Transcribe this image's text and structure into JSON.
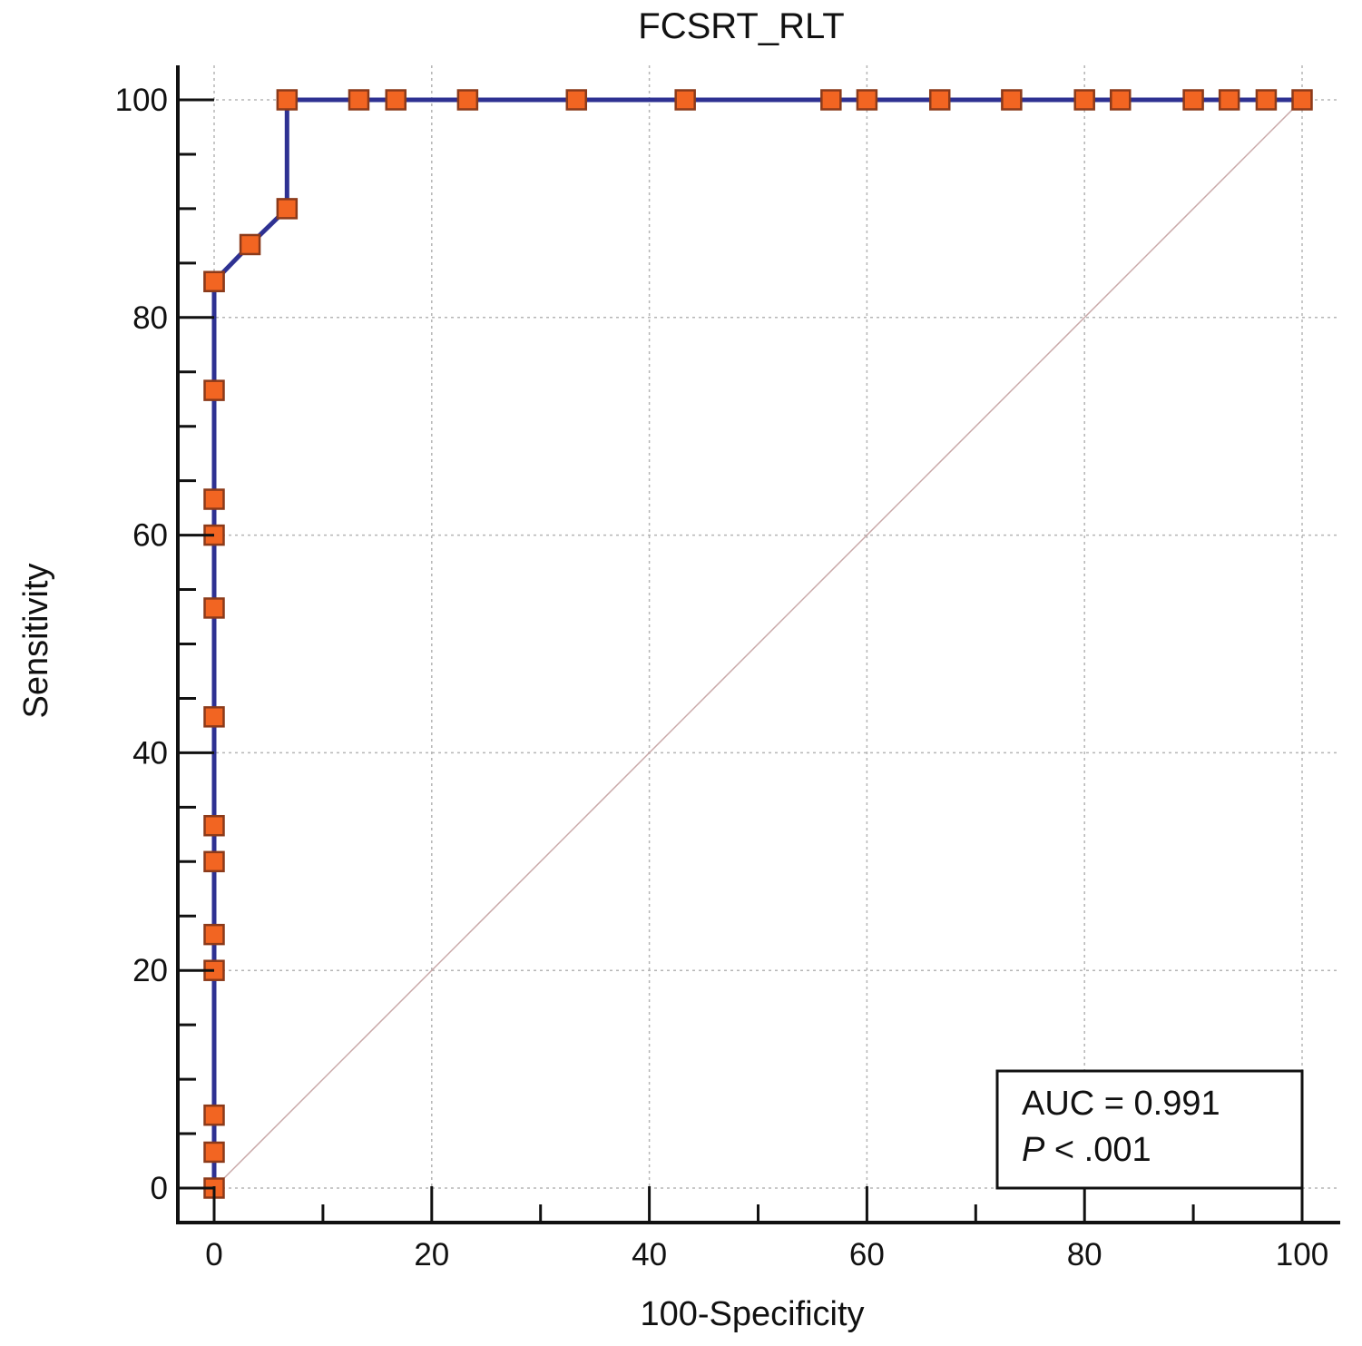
{
  "chart_data": {
    "type": "line",
    "title": "FCSRT_RLT",
    "xlabel": "100-Specificity",
    "ylabel": "Sensitivity",
    "xlim": [
      0,
      100
    ],
    "ylim": [
      0,
      100
    ],
    "x_ticks": [
      "0",
      "20",
      "40",
      "60",
      "80",
      "100"
    ],
    "y_ticks": [
      "0",
      "20",
      "40",
      "60",
      "80",
      "100"
    ],
    "grid": true,
    "reference_line": {
      "x": [
        0,
        100
      ],
      "y": [
        0,
        100
      ]
    },
    "series": [
      {
        "x": [
          0,
          0,
          0,
          0,
          0,
          0,
          0,
          0,
          0,
          0,
          0,
          0,
          0,
          0,
          3.3,
          6.7,
          6.7,
          13.3,
          16.7,
          23.3,
          33.3,
          43.3,
          56.7,
          60,
          66.7,
          73.3,
          80,
          83.3,
          90,
          93.3,
          96.7,
          100
        ],
        "y": [
          0,
          3.3,
          6.7,
          20,
          23.3,
          30,
          33.3,
          43.3,
          53.3,
          60,
          63.3,
          73.3,
          83.3,
          83.3,
          86.7,
          90,
          100,
          100,
          100,
          100,
          100,
          100,
          100,
          100,
          100,
          100,
          100,
          100,
          100,
          100,
          100,
          100
        ]
      }
    ],
    "annotations": {
      "auc": "AUC = 0.991",
      "p_label": "P",
      "p_value": " < .001"
    },
    "colors": {
      "line": "#2e3192",
      "marker_fill": "#f26522",
      "marker_stroke": "#8b3a1a",
      "grid": "#b5b5b5",
      "reference": "#c9a8a8",
      "axis": "#111111"
    }
  }
}
